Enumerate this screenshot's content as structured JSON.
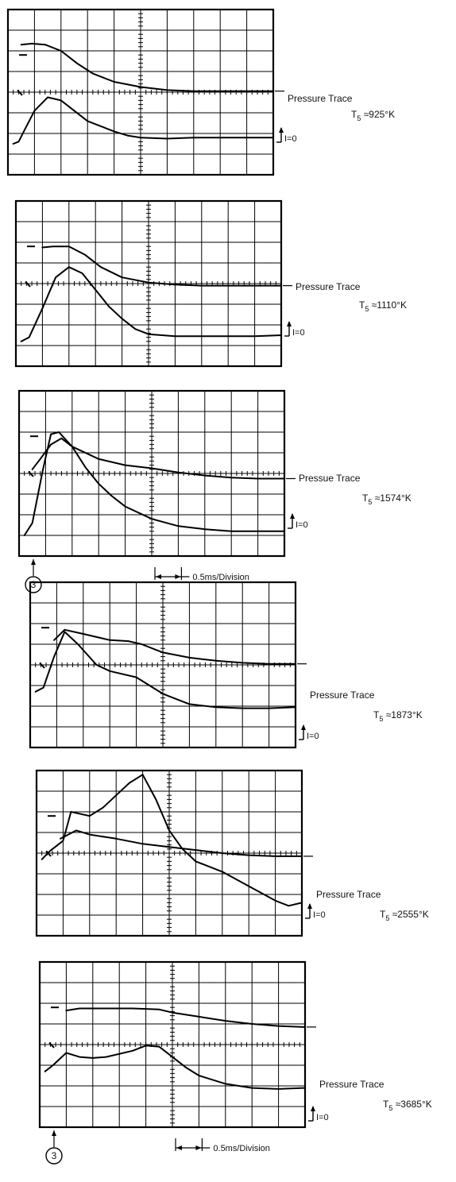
{
  "figure": {
    "scale_label": "0.5ms/Division",
    "marker_label": "3",
    "pressure_label_default": "Pressure Trace",
    "pressure_label_alt": "Pressue Trace",
    "zero_label": "I=0"
  },
  "chart_data": [
    {
      "type": "line",
      "title": "",
      "xlabel": "",
      "ylabel": "",
      "temperature": {
        "prefix": "T",
        "sub": "5",
        "rest": " ≈925°K"
      },
      "pressure_label": "Pressure Trace",
      "xlim": [
        0,
        10
      ],
      "ylim": [
        0,
        8
      ],
      "grid": true,
      "series": [
        {
          "x": [
            0.5,
            0.9,
            1.4,
            2.0,
            2.6,
            3.2,
            4.0,
            5.0,
            6.0,
            7.0,
            8.0,
            9.0,
            10.0
          ],
          "y": [
            6.3,
            6.35,
            6.3,
            6.0,
            5.4,
            4.9,
            4.5,
            4.25,
            4.1,
            4.05,
            4.05,
            4.05,
            4.05
          ]
        },
        {
          "x": [
            0.2,
            0.4,
            0.6,
            1.0,
            1.5,
            2.0,
            2.5,
            3.0,
            3.5,
            4.0,
            4.5,
            5.0,
            6.0,
            7.0,
            8.0,
            9.0,
            10.0
          ],
          "y": [
            1.5,
            1.6,
            2.1,
            3.1,
            3.75,
            3.6,
            3.1,
            2.6,
            2.35,
            2.1,
            1.9,
            1.8,
            1.75,
            1.8,
            1.8,
            1.8,
            1.8
          ]
        }
      ]
    },
    {
      "type": "line",
      "title": "",
      "xlabel": "",
      "ylabel": "",
      "temperature": {
        "prefix": "T",
        "sub": "5",
        "rest": " ≈1110°K"
      },
      "pressure_label": "Pressure Trace",
      "xlim": [
        0,
        10
      ],
      "ylim": [
        0,
        8
      ],
      "grid": true,
      "series": [
        {
          "x": [
            1.0,
            1.4,
            2.0,
            2.6,
            3.2,
            4.0,
            5.0,
            6.0,
            7.0,
            8.0,
            9.0,
            10.0
          ],
          "y": [
            5.75,
            5.8,
            5.8,
            5.4,
            4.8,
            4.3,
            4.05,
            3.95,
            3.9,
            3.9,
            3.9,
            3.9
          ]
        },
        {
          "x": [
            0.2,
            0.5,
            1.0,
            1.5,
            2.0,
            2.5,
            3.0,
            3.5,
            4.0,
            4.5,
            5.0,
            6.0,
            7.0,
            8.0,
            9.0,
            10.0
          ],
          "y": [
            1.2,
            1.4,
            2.8,
            4.3,
            4.8,
            4.5,
            3.7,
            2.9,
            2.3,
            1.8,
            1.55,
            1.45,
            1.45,
            1.45,
            1.45,
            1.5
          ]
        }
      ]
    },
    {
      "type": "line",
      "title": "",
      "xlabel": "",
      "ylabel": "",
      "temperature": {
        "prefix": "T",
        "sub": "5",
        "rest": " ≈1574°K"
      },
      "pressure_label": "Pressue Trace",
      "show_scale": true,
      "show_marker": true,
      "xlim": [
        0,
        10
      ],
      "ylim": [
        0,
        8
      ],
      "grid": true,
      "series": [
        {
          "x": [
            0.5,
            0.8,
            1.2,
            1.6,
            2.0,
            3.0,
            4.0,
            5.0,
            6.0,
            7.0,
            8.0,
            9.0,
            10.0
          ],
          "y": [
            4.2,
            4.7,
            5.4,
            5.7,
            5.3,
            4.7,
            4.4,
            4.25,
            4.05,
            3.9,
            3.8,
            3.75,
            3.75
          ]
        },
        {
          "x": [
            0.2,
            0.5,
            0.9,
            1.2,
            1.5,
            2.0,
            2.5,
            3.0,
            3.5,
            4.0,
            5.0,
            6.0,
            7.0,
            8.0,
            9.0,
            10.0
          ],
          "y": [
            1.0,
            1.6,
            4.2,
            5.9,
            6.0,
            5.3,
            4.3,
            3.5,
            2.9,
            2.4,
            1.8,
            1.45,
            1.3,
            1.2,
            1.2,
            1.2
          ]
        }
      ]
    },
    {
      "type": "line",
      "title": "",
      "xlabel": "",
      "ylabel": "",
      "temperature": {
        "prefix": "T",
        "sub": "5",
        "rest": " ≈1873°K"
      },
      "pressure_label": "Pressure Trace",
      "xlim": [
        0,
        10
      ],
      "ylim": [
        0,
        8
      ],
      "grid": true,
      "series": [
        {
          "x": [
            0.9,
            1.3,
            2.0,
            3.0,
            3.7,
            4.2,
            5.0,
            6.0,
            7.0,
            8.0,
            9.0,
            10.0
          ],
          "y": [
            5.2,
            5.7,
            5.5,
            5.2,
            5.15,
            5.0,
            4.6,
            4.35,
            4.2,
            4.1,
            4.05,
            4.05
          ]
        },
        {
          "x": [
            0.2,
            0.5,
            0.9,
            1.3,
            1.8,
            2.5,
            3.0,
            4.0,
            5.0,
            6.0,
            7.0,
            8.0,
            9.0,
            10.0
          ],
          "y": [
            2.7,
            2.9,
            4.4,
            5.6,
            5.0,
            4.0,
            3.7,
            3.4,
            2.6,
            2.1,
            1.95,
            1.9,
            1.9,
            1.95
          ]
        }
      ]
    },
    {
      "type": "line",
      "title": "",
      "xlabel": "",
      "ylabel": "",
      "temperature": {
        "prefix": "T",
        "sub": "5",
        "rest": " ≈2555°K"
      },
      "pressure_label": "Pressure Trace",
      "xlim": [
        0,
        10
      ],
      "ylim": [
        0,
        8
      ],
      "grid": true,
      "series": [
        {
          "x": [
            0.9,
            1.5,
            2.0,
            3.0,
            4.0,
            5.0,
            6.0,
            7.0,
            8.0,
            9.0,
            10.0
          ],
          "y": [
            4.7,
            5.1,
            4.9,
            4.7,
            4.45,
            4.3,
            4.15,
            4.0,
            3.9,
            3.85,
            3.85
          ]
        },
        {
          "x": [
            0.2,
            0.5,
            1.0,
            1.3,
            2.0,
            2.5,
            3.0,
            3.5,
            4.0,
            4.5,
            5.0,
            5.5,
            6.0,
            7.0,
            8.0,
            9.0,
            9.5,
            10.0
          ],
          "y": [
            3.7,
            4.1,
            4.6,
            6.0,
            5.8,
            6.2,
            6.8,
            7.4,
            7.8,
            6.6,
            5.1,
            4.2,
            3.6,
            3.1,
            2.4,
            1.7,
            1.45,
            1.6
          ]
        }
      ]
    },
    {
      "type": "line",
      "title": "",
      "xlabel": "",
      "ylabel": "",
      "temperature": {
        "prefix": "T",
        "sub": "5",
        "rest": " ≈3685°K"
      },
      "pressure_label": "Pressure Trace",
      "show_scale": true,
      "show_marker": true,
      "xlim": [
        0,
        10
      ],
      "ylim": [
        0,
        8
      ],
      "grid": true,
      "series": [
        {
          "x": [
            1.0,
            1.5,
            2.5,
            3.5,
            4.5,
            5.0,
            6.0,
            7.0,
            8.0,
            9.0,
            10.0
          ],
          "y": [
            5.65,
            5.75,
            5.75,
            5.75,
            5.7,
            5.55,
            5.35,
            5.15,
            5.0,
            4.9,
            4.85
          ]
        },
        {
          "x": [
            0.2,
            0.5,
            1.0,
            1.5,
            2.0,
            2.5,
            3.5,
            4.0,
            4.5,
            5.0,
            5.5,
            6.0,
            7.0,
            8.0,
            9.0,
            10.0
          ],
          "y": [
            2.7,
            3.0,
            3.6,
            3.4,
            3.35,
            3.4,
            3.7,
            3.95,
            3.9,
            3.4,
            2.9,
            2.5,
            2.1,
            1.9,
            1.85,
            1.9
          ]
        }
      ]
    }
  ]
}
